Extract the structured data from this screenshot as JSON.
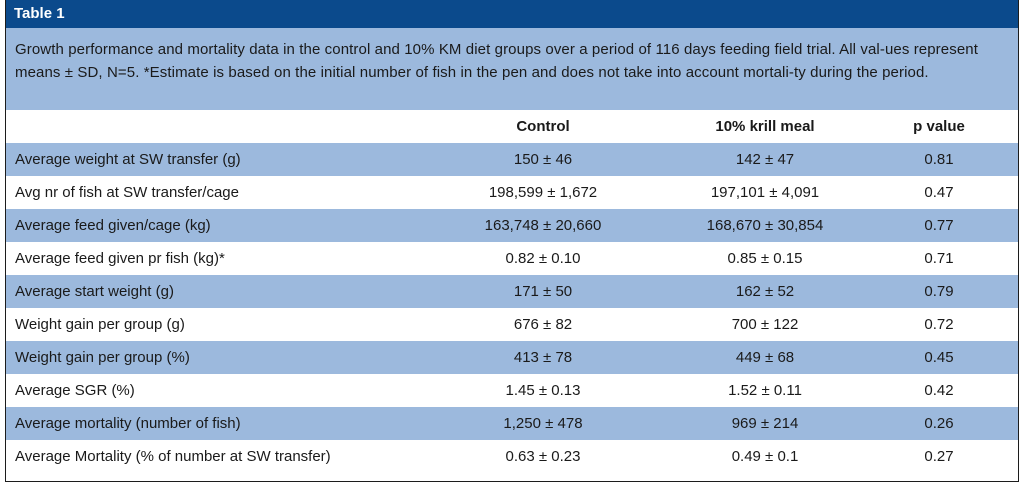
{
  "table": {
    "label": "Table 1",
    "caption": "Growth performance and mortality data in the control and 10% KM diet groups over a period of 116 days feeding field trial. All val-ues represent means ± SD, N=5. *Estimate is based on the initial number of fish in the pen and does not take into account mortali-ty during the period.",
    "headers": [
      "",
      "Control",
      "10% krill meal",
      "p value"
    ],
    "rows": [
      {
        "label": "Average weight at SW transfer (g)",
        "control": "150 ± 46",
        "krill": "142 ± 47",
        "p": "0.81"
      },
      {
        "label": "Avg nr of fish at SW transfer/cage",
        "control": "198,599 ± 1,672",
        "krill": "197,101 ± 4,091",
        "p": "0.47"
      },
      {
        "label": "Average feed given/cage (kg)",
        "control": "163,748 ± 20,660",
        "krill": "168,670 ± 30,854",
        "p": "0.77"
      },
      {
        "label": "Average feed given pr fish (kg)*",
        "control": "0.82 ± 0.10",
        "krill": "0.85 ± 0.15",
        "p": "0.71"
      },
      {
        "label": "Average start weight (g)",
        "control": "171 ± 50",
        "krill": "162 ± 52",
        "p": "0.79"
      },
      {
        "label": "Weight gain per group (g)",
        "control": "676 ± 82",
        "krill": "700 ± 122",
        "p": "0.72"
      },
      {
        "label": "Weight gain per group (%)",
        "control": "413 ± 78",
        "krill": "449 ± 68",
        "p": "0.45"
      },
      {
        "label": "Average SGR (%)",
        "control": "1.45 ± 0.13",
        "krill": "1.52 ± 0.11",
        "p": "0.42"
      },
      {
        "label": "Average mortality (number of fish)",
        "control": "1,250 ± 478",
        "krill": "969 ± 214",
        "p": "0.26"
      },
      {
        "label": "Average Mortality (% of number at SW transfer)",
        "control": "0.63 ± 0.23",
        "krill": "0.49 ± 0.1",
        "p": "0.27"
      }
    ]
  }
}
